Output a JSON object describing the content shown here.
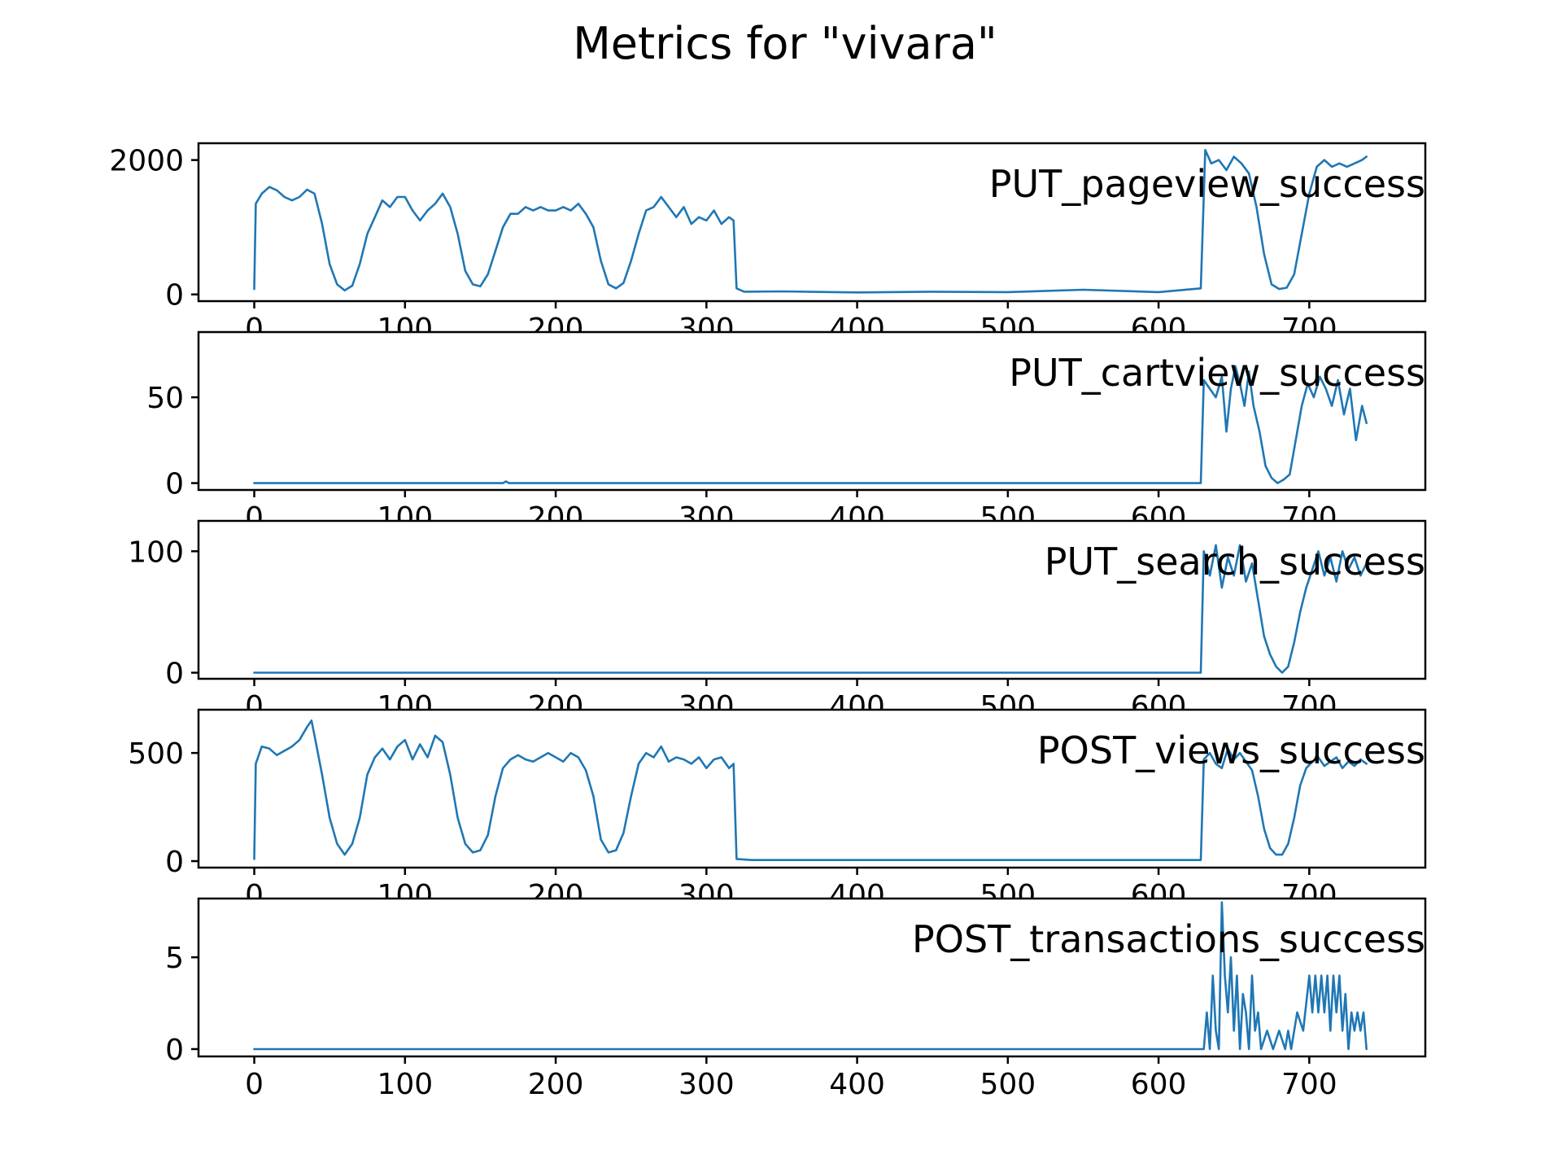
{
  "title": "Metrics for \"vivara\"",
  "colors": {
    "line": "#1f77b4",
    "axis": "#000000",
    "background": "#ffffff"
  },
  "chart_data": {
    "type": "line",
    "layout": "stacked-subplots",
    "grid": false,
    "x_ticks": [
      0,
      100,
      200,
      300,
      400,
      500,
      600,
      700
    ],
    "x_ticks_labels": [
      "0",
      "100",
      "200",
      "300",
      "400",
      "500",
      "600",
      "700"
    ],
    "xlim": [
      -37,
      777
    ],
    "panels": [
      {
        "name": "PUT_pageview_success",
        "ylim": [
          -100,
          2250
        ],
        "y_ticks": [
          0,
          2000
        ],
        "y_tick_labels": [
          "0",
          "2000"
        ],
        "points": [
          [
            0,
            80
          ],
          [
            1,
            1350
          ],
          [
            5,
            1500
          ],
          [
            10,
            1600
          ],
          [
            15,
            1550
          ],
          [
            20,
            1450
          ],
          [
            25,
            1400
          ],
          [
            30,
            1450
          ],
          [
            35,
            1560
          ],
          [
            40,
            1500
          ],
          [
            45,
            1050
          ],
          [
            50,
            450
          ],
          [
            55,
            150
          ],
          [
            60,
            60
          ],
          [
            65,
            130
          ],
          [
            70,
            450
          ],
          [
            75,
            900
          ],
          [
            80,
            1150
          ],
          [
            85,
            1400
          ],
          [
            90,
            1300
          ],
          [
            95,
            1450
          ],
          [
            100,
            1450
          ],
          [
            105,
            1250
          ],
          [
            110,
            1100
          ],
          [
            115,
            1250
          ],
          [
            120,
            1350
          ],
          [
            125,
            1500
          ],
          [
            130,
            1300
          ],
          [
            135,
            900
          ],
          [
            140,
            350
          ],
          [
            145,
            150
          ],
          [
            150,
            120
          ],
          [
            155,
            300
          ],
          [
            160,
            650
          ],
          [
            165,
            1000
          ],
          [
            170,
            1200
          ],
          [
            175,
            1200
          ],
          [
            180,
            1300
          ],
          [
            185,
            1250
          ],
          [
            190,
            1300
          ],
          [
            195,
            1250
          ],
          [
            200,
            1250
          ],
          [
            205,
            1300
          ],
          [
            210,
            1250
          ],
          [
            215,
            1350
          ],
          [
            220,
            1200
          ],
          [
            225,
            1000
          ],
          [
            230,
            500
          ],
          [
            235,
            150
          ],
          [
            240,
            90
          ],
          [
            245,
            170
          ],
          [
            250,
            500
          ],
          [
            255,
            900
          ],
          [
            260,
            1250
          ],
          [
            265,
            1300
          ],
          [
            270,
            1450
          ],
          [
            275,
            1300
          ],
          [
            280,
            1150
          ],
          [
            285,
            1300
          ],
          [
            290,
            1050
          ],
          [
            295,
            1150
          ],
          [
            300,
            1100
          ],
          [
            305,
            1250
          ],
          [
            310,
            1050
          ],
          [
            315,
            1150
          ],
          [
            318,
            1100
          ],
          [
            320,
            90
          ],
          [
            325,
            40
          ],
          [
            350,
            45
          ],
          [
            400,
            30
          ],
          [
            450,
            40
          ],
          [
            500,
            35
          ],
          [
            550,
            70
          ],
          [
            600,
            35
          ],
          [
            628,
            90
          ],
          [
            631,
            2150
          ],
          [
            635,
            1950
          ],
          [
            640,
            2000
          ],
          [
            645,
            1850
          ],
          [
            650,
            2050
          ],
          [
            655,
            1950
          ],
          [
            660,
            1800
          ],
          [
            665,
            1300
          ],
          [
            670,
            600
          ],
          [
            675,
            150
          ],
          [
            680,
            80
          ],
          [
            685,
            100
          ],
          [
            690,
            300
          ],
          [
            695,
            900
          ],
          [
            700,
            1500
          ],
          [
            705,
            1900
          ],
          [
            710,
            2000
          ],
          [
            715,
            1900
          ],
          [
            720,
            1950
          ],
          [
            725,
            1900
          ],
          [
            730,
            1950
          ],
          [
            735,
            2000
          ],
          [
            738,
            2050
          ]
        ]
      },
      {
        "name": "PUT_cartview_success",
        "ylim": [
          -4,
          88
        ],
        "y_ticks": [
          0,
          50
        ],
        "y_tick_labels": [
          "0",
          "50"
        ],
        "points": [
          [
            0,
            0
          ],
          [
            165,
            0
          ],
          [
            167,
            1
          ],
          [
            169,
            0
          ],
          [
            628,
            0
          ],
          [
            630,
            60
          ],
          [
            634,
            55
          ],
          [
            638,
            50
          ],
          [
            642,
            62
          ],
          [
            645,
            30
          ],
          [
            648,
            55
          ],
          [
            651,
            68
          ],
          [
            654,
            58
          ],
          [
            657,
            45
          ],
          [
            660,
            65
          ],
          [
            663,
            45
          ],
          [
            667,
            30
          ],
          [
            671,
            10
          ],
          [
            675,
            3
          ],
          [
            679,
            0
          ],
          [
            683,
            2
          ],
          [
            687,
            5
          ],
          [
            691,
            25
          ],
          [
            695,
            45
          ],
          [
            699,
            58
          ],
          [
            703,
            50
          ],
          [
            707,
            62
          ],
          [
            711,
            55
          ],
          [
            715,
            45
          ],
          [
            719,
            60
          ],
          [
            723,
            40
          ],
          [
            727,
            55
          ],
          [
            731,
            25
          ],
          [
            735,
            45
          ],
          [
            738,
            35
          ]
        ]
      },
      {
        "name": "PUT_search_success",
        "ylim": [
          -5,
          125
        ],
        "y_ticks": [
          0,
          100
        ],
        "y_tick_labels": [
          "0",
          "100"
        ],
        "points": [
          [
            0,
            0
          ],
          [
            628,
            0
          ],
          [
            630,
            100
          ],
          [
            634,
            80
          ],
          [
            638,
            105
          ],
          [
            642,
            70
          ],
          [
            646,
            95
          ],
          [
            650,
            80
          ],
          [
            654,
            105
          ],
          [
            658,
            75
          ],
          [
            662,
            90
          ],
          [
            666,
            60
          ],
          [
            670,
            30
          ],
          [
            674,
            15
          ],
          [
            678,
            5
          ],
          [
            682,
            0
          ],
          [
            686,
            5
          ],
          [
            690,
            25
          ],
          [
            694,
            50
          ],
          [
            698,
            70
          ],
          [
            702,
            85
          ],
          [
            706,
            100
          ],
          [
            710,
            80
          ],
          [
            714,
            95
          ],
          [
            718,
            75
          ],
          [
            722,
            100
          ],
          [
            726,
            85
          ],
          [
            730,
            95
          ],
          [
            734,
            80
          ],
          [
            738,
            90
          ]
        ]
      },
      {
        "name": "POST_views_success",
        "ylim": [
          -30,
          700
        ],
        "y_ticks": [
          0,
          500
        ],
        "y_tick_labels": [
          "0",
          "500"
        ],
        "points": [
          [
            0,
            10
          ],
          [
            1,
            450
          ],
          [
            5,
            530
          ],
          [
            10,
            520
          ],
          [
            15,
            490
          ],
          [
            20,
            510
          ],
          [
            25,
            530
          ],
          [
            30,
            560
          ],
          [
            35,
            620
          ],
          [
            38,
            650
          ],
          [
            40,
            580
          ],
          [
            45,
            400
          ],
          [
            50,
            200
          ],
          [
            55,
            80
          ],
          [
            60,
            30
          ],
          [
            65,
            80
          ],
          [
            70,
            200
          ],
          [
            75,
            400
          ],
          [
            80,
            480
          ],
          [
            85,
            520
          ],
          [
            90,
            470
          ],
          [
            95,
            530
          ],
          [
            100,
            560
          ],
          [
            105,
            470
          ],
          [
            110,
            540
          ],
          [
            115,
            480
          ],
          [
            120,
            580
          ],
          [
            125,
            550
          ],
          [
            130,
            400
          ],
          [
            135,
            200
          ],
          [
            140,
            80
          ],
          [
            145,
            40
          ],
          [
            150,
            50
          ],
          [
            155,
            120
          ],
          [
            160,
            300
          ],
          [
            165,
            430
          ],
          [
            170,
            470
          ],
          [
            175,
            490
          ],
          [
            180,
            470
          ],
          [
            185,
            460
          ],
          [
            190,
            480
          ],
          [
            195,
            500
          ],
          [
            200,
            480
          ],
          [
            205,
            460
          ],
          [
            210,
            500
          ],
          [
            215,
            480
          ],
          [
            220,
            420
          ],
          [
            225,
            300
          ],
          [
            230,
            100
          ],
          [
            235,
            40
          ],
          [
            240,
            50
          ],
          [
            245,
            130
          ],
          [
            250,
            300
          ],
          [
            255,
            450
          ],
          [
            260,
            500
          ],
          [
            265,
            480
          ],
          [
            270,
            530
          ],
          [
            275,
            460
          ],
          [
            280,
            480
          ],
          [
            285,
            470
          ],
          [
            290,
            450
          ],
          [
            295,
            480
          ],
          [
            300,
            430
          ],
          [
            305,
            470
          ],
          [
            310,
            480
          ],
          [
            315,
            430
          ],
          [
            318,
            450
          ],
          [
            320,
            10
          ],
          [
            330,
            5
          ],
          [
            400,
            5
          ],
          [
            500,
            5
          ],
          [
            628,
            5
          ],
          [
            630,
            470
          ],
          [
            634,
            500
          ],
          [
            638,
            450
          ],
          [
            642,
            430
          ],
          [
            646,
            520
          ],
          [
            650,
            470
          ],
          [
            654,
            500
          ],
          [
            658,
            460
          ],
          [
            662,
            420
          ],
          [
            666,
            300
          ],
          [
            670,
            150
          ],
          [
            674,
            60
          ],
          [
            678,
            30
          ],
          [
            682,
            30
          ],
          [
            686,
            80
          ],
          [
            690,
            200
          ],
          [
            694,
            350
          ],
          [
            698,
            430
          ],
          [
            702,
            460
          ],
          [
            706,
            480
          ],
          [
            710,
            440
          ],
          [
            714,
            460
          ],
          [
            718,
            480
          ],
          [
            722,
            430
          ],
          [
            726,
            460
          ],
          [
            730,
            440
          ],
          [
            734,
            470
          ],
          [
            738,
            450
          ]
        ]
      },
      {
        "name": "POST_transactions_success",
        "ylim": [
          -0.4,
          8.2
        ],
        "y_ticks": [
          0,
          5
        ],
        "y_tick_labels": [
          "0",
          "5"
        ],
        "points": [
          [
            0,
            0
          ],
          [
            630,
            0
          ],
          [
            632,
            2
          ],
          [
            634,
            0
          ],
          [
            636,
            4
          ],
          [
            638,
            1
          ],
          [
            640,
            0
          ],
          [
            642,
            8
          ],
          [
            644,
            4
          ],
          [
            646,
            2
          ],
          [
            648,
            5
          ],
          [
            650,
            1
          ],
          [
            652,
            4
          ],
          [
            654,
            0
          ],
          [
            656,
            3
          ],
          [
            658,
            2
          ],
          [
            660,
            0
          ],
          [
            662,
            4
          ],
          [
            664,
            1
          ],
          [
            666,
            2
          ],
          [
            668,
            0
          ],
          [
            672,
            1
          ],
          [
            676,
            0
          ],
          [
            680,
            1
          ],
          [
            684,
            0
          ],
          [
            686,
            1
          ],
          [
            688,
            0
          ],
          [
            692,
            2
          ],
          [
            696,
            1
          ],
          [
            700,
            4
          ],
          [
            702,
            2
          ],
          [
            704,
            4
          ],
          [
            706,
            2
          ],
          [
            708,
            4
          ],
          [
            710,
            2
          ],
          [
            712,
            4
          ],
          [
            714,
            1
          ],
          [
            716,
            4
          ],
          [
            718,
            2
          ],
          [
            720,
            4
          ],
          [
            722,
            1
          ],
          [
            724,
            3
          ],
          [
            726,
            0
          ],
          [
            728,
            2
          ],
          [
            730,
            1
          ],
          [
            732,
            2
          ],
          [
            734,
            1
          ],
          [
            736,
            2
          ],
          [
            738,
            0
          ]
        ]
      }
    ]
  }
}
